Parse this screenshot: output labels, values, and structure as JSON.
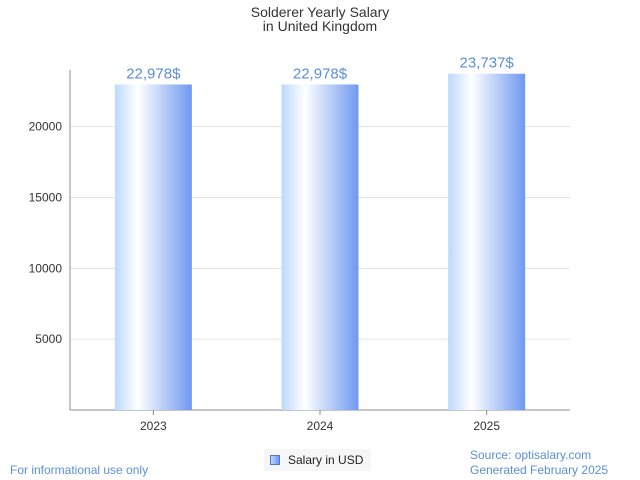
{
  "chart_data": {
    "type": "bar",
    "title_lines": [
      "Solderer Yearly Salary",
      "in United Kingdom"
    ],
    "categories": [
      "2023",
      "2024",
      "2025"
    ],
    "series": [
      {
        "name": "Salary in USD",
        "values": [
          22978,
          22978,
          23737
        ]
      }
    ],
    "data_labels": [
      "22,978$",
      "22,978$",
      "23,737$"
    ],
    "y_ticks": [
      5000,
      10000,
      15000,
      20000
    ],
    "ylim": [
      0,
      24000
    ],
    "grid": true,
    "legend_position": "bottom-center"
  },
  "footer": {
    "disclaimer": "For informational use only",
    "source": "Source: optisalary.com",
    "generated": "Generated February 2025"
  },
  "colors": {
    "bar_light": "#ffffff",
    "bar_mid": "#bcd9ff",
    "bar_dark": "#6f98f0",
    "data_label": "#5b8fd4",
    "grid": "#e3e3e3",
    "axis": "#8c8c8c"
  }
}
